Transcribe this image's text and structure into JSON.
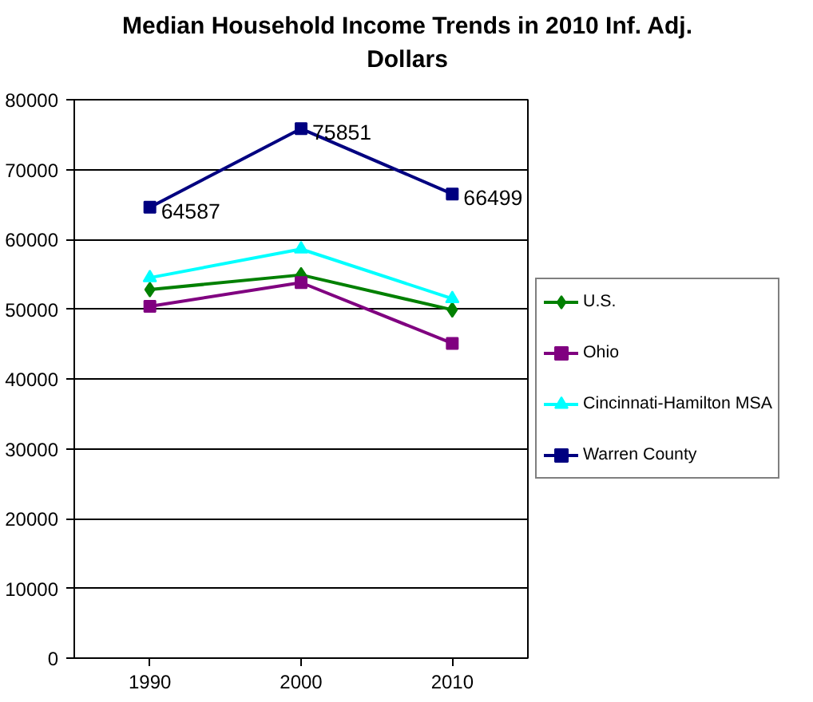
{
  "chart_data": {
    "type": "line",
    "title": "Median Household Income Trends in 2010 Inf. Adj. Dollars",
    "categories": [
      "1990",
      "2000",
      "2010"
    ],
    "series": [
      {
        "name": "U.S.",
        "color": "#008000",
        "marker": "diamond",
        "values": [
          52800,
          54900,
          49900
        ]
      },
      {
        "name": "Ohio",
        "color": "#800080",
        "marker": "square",
        "values": [
          50400,
          53800,
          45100
        ]
      },
      {
        "name": "Cincinnati-Hamilton MSA",
        "color": "#00ffff",
        "marker": "triangle",
        "values": [
          54500,
          58600,
          51500
        ]
      },
      {
        "name": "Warren County",
        "color": "#000080",
        "marker": "square",
        "values": [
          64587,
          75851,
          66499
        ],
        "value_labels": [
          "64587",
          "75851",
          "66499"
        ]
      }
    ],
    "ylim": [
      0,
      80000
    ],
    "yticks": [
      0,
      10000,
      20000,
      30000,
      40000,
      50000,
      60000,
      70000,
      80000
    ],
    "grid": "y",
    "legend": "right"
  }
}
